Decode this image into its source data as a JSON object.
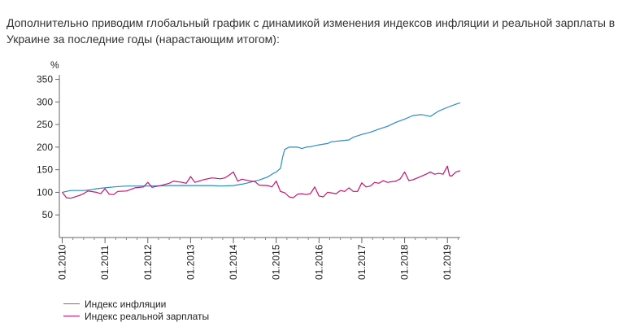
{
  "page": {
    "intro_text": "Дополнительно приводим глобальный график с динамикой изменения индексов инфляции и реальной зарплаты в Украине за последние годы (нарастающим итогом):"
  },
  "chart_data": {
    "type": "line",
    "title": "",
    "ylabel": "%",
    "xlabel": "",
    "ylim": [
      0,
      360
    ],
    "yticks": [
      50,
      100,
      150,
      200,
      250,
      300,
      350
    ],
    "xlim": [
      2010.0,
      2019.3
    ],
    "x_ticks": [
      {
        "label": "01.2010",
        "x": 2010
      },
      {
        "label": "01.2011",
        "x": 2011
      },
      {
        "label": "01.2012",
        "x": 2012
      },
      {
        "label": "01.2013",
        "x": 2013
      },
      {
        "label": "01.2014",
        "x": 2014
      },
      {
        "label": "01.2015",
        "x": 2015
      },
      {
        "label": "01.2016",
        "x": 2016
      },
      {
        "label": "01.2017",
        "x": 2017
      },
      {
        "label": "01.2018",
        "x": 2018
      },
      {
        "label": "01.2019",
        "x": 2019
      }
    ],
    "grid": false,
    "legend": "bottom-left",
    "series": [
      {
        "name": "Индекс инфляции",
        "color": "#2b8cc4",
        "points": [
          [
            2010.0,
            100
          ],
          [
            2010.2,
            104
          ],
          [
            2010.5,
            104
          ],
          [
            2010.7,
            106
          ],
          [
            2010.8,
            108
          ],
          [
            2011.0,
            110
          ],
          [
            2011.2,
            112
          ],
          [
            2011.5,
            114
          ],
          [
            2012.0,
            114
          ],
          [
            2012.5,
            115
          ],
          [
            2013.0,
            115
          ],
          [
            2013.5,
            115
          ],
          [
            2013.7,
            114
          ],
          [
            2014.0,
            115
          ],
          [
            2014.2,
            118
          ],
          [
            2014.3,
            120
          ],
          [
            2014.5,
            125
          ],
          [
            2014.6,
            127
          ],
          [
            2014.8,
            134
          ],
          [
            2014.9,
            140
          ],
          [
            2015.0,
            145
          ],
          [
            2015.1,
            153
          ],
          [
            2015.15,
            178
          ],
          [
            2015.2,
            195
          ],
          [
            2015.3,
            200
          ],
          [
            2015.5,
            200
          ],
          [
            2015.6,
            197
          ],
          [
            2015.7,
            200
          ],
          [
            2015.8,
            201
          ],
          [
            2016.0,
            205
          ],
          [
            2016.2,
            208
          ],
          [
            2016.3,
            212
          ],
          [
            2016.5,
            214
          ],
          [
            2016.7,
            216
          ],
          [
            2016.8,
            222
          ],
          [
            2017.0,
            228
          ],
          [
            2017.2,
            233
          ],
          [
            2017.4,
            240
          ],
          [
            2017.6,
            246
          ],
          [
            2017.8,
            255
          ],
          [
            2018.0,
            262
          ],
          [
            2018.2,
            270
          ],
          [
            2018.4,
            272
          ],
          [
            2018.6,
            268
          ],
          [
            2018.8,
            280
          ],
          [
            2019.0,
            288
          ],
          [
            2019.2,
            295
          ],
          [
            2019.3,
            298
          ]
        ]
      },
      {
        "name": "Индекс реальной зарплаты",
        "color": "#c8146e",
        "points": [
          [
            2010.0,
            100
          ],
          [
            2010.1,
            88
          ],
          [
            2010.2,
            87
          ],
          [
            2010.4,
            93
          ],
          [
            2010.5,
            97
          ],
          [
            2010.6,
            103
          ],
          [
            2010.8,
            100
          ],
          [
            2010.9,
            97
          ],
          [
            2011.0,
            108
          ],
          [
            2011.1,
            96
          ],
          [
            2011.2,
            95
          ],
          [
            2011.3,
            102
          ],
          [
            2011.5,
            103
          ],
          [
            2011.7,
            110
          ],
          [
            2011.9,
            112
          ],
          [
            2012.0,
            122
          ],
          [
            2012.1,
            111
          ],
          [
            2012.3,
            115
          ],
          [
            2012.5,
            120
          ],
          [
            2012.6,
            125
          ],
          [
            2012.8,
            122
          ],
          [
            2012.9,
            120
          ],
          [
            2013.0,
            135
          ],
          [
            2013.1,
            122
          ],
          [
            2013.3,
            128
          ],
          [
            2013.5,
            132
          ],
          [
            2013.7,
            130
          ],
          [
            2013.8,
            132
          ],
          [
            2013.9,
            138
          ],
          [
            2014.0,
            145
          ],
          [
            2014.1,
            125
          ],
          [
            2014.2,
            129
          ],
          [
            2014.4,
            125
          ],
          [
            2014.5,
            124
          ],
          [
            2014.6,
            116
          ],
          [
            2014.8,
            115
          ],
          [
            2014.9,
            112
          ],
          [
            2015.0,
            125
          ],
          [
            2015.1,
            102
          ],
          [
            2015.2,
            99
          ],
          [
            2015.3,
            90
          ],
          [
            2015.4,
            88
          ],
          [
            2015.5,
            96
          ],
          [
            2015.6,
            97
          ],
          [
            2015.7,
            95
          ],
          [
            2015.8,
            97
          ],
          [
            2015.9,
            112
          ],
          [
            2016.0,
            92
          ],
          [
            2016.1,
            90
          ],
          [
            2016.2,
            100
          ],
          [
            2016.4,
            97
          ],
          [
            2016.5,
            104
          ],
          [
            2016.6,
            102
          ],
          [
            2016.7,
            110
          ],
          [
            2016.8,
            102
          ],
          [
            2016.9,
            102
          ],
          [
            2017.0,
            121
          ],
          [
            2017.1,
            112
          ],
          [
            2017.2,
            114
          ],
          [
            2017.3,
            122
          ],
          [
            2017.4,
            120
          ],
          [
            2017.5,
            126
          ],
          [
            2017.6,
            122
          ],
          [
            2017.8,
            125
          ],
          [
            2017.9,
            130
          ],
          [
            2018.0,
            145
          ],
          [
            2018.1,
            126
          ],
          [
            2018.2,
            128
          ],
          [
            2018.3,
            132
          ],
          [
            2018.5,
            140
          ],
          [
            2018.6,
            145
          ],
          [
            2018.7,
            140
          ],
          [
            2018.8,
            142
          ],
          [
            2018.9,
            140
          ],
          [
            2019.0,
            158
          ],
          [
            2019.05,
            137
          ],
          [
            2019.1,
            136
          ],
          [
            2019.2,
            145
          ],
          [
            2019.3,
            148
          ]
        ]
      }
    ]
  }
}
